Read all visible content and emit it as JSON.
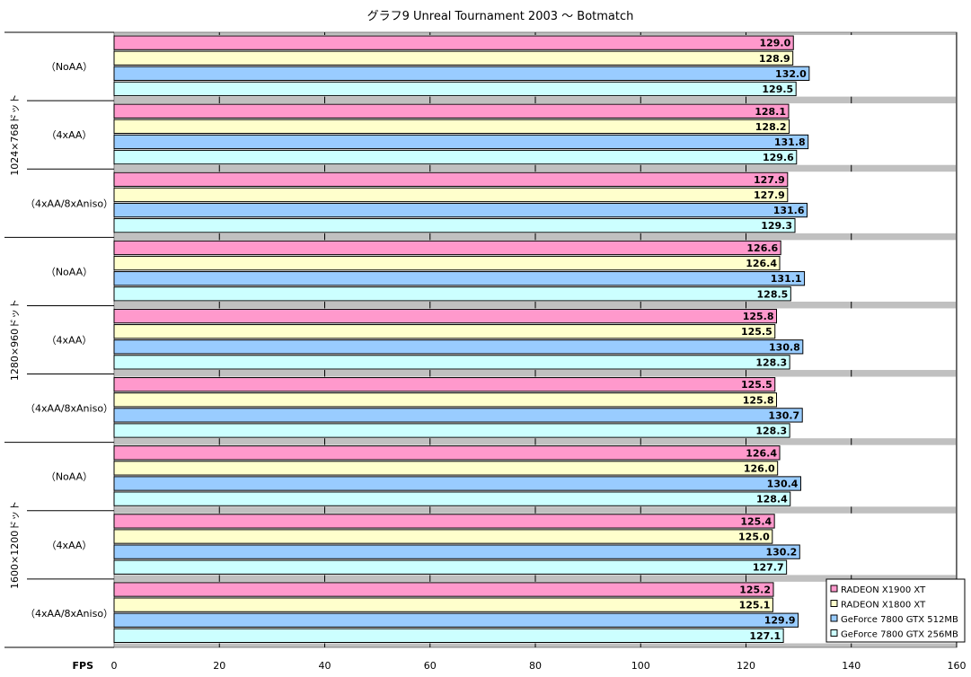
{
  "chart_data": {
    "type": "bar",
    "orientation": "horizontal",
    "title": "グラフ9  Unreal Tournament 2003 〜 Botmatch",
    "xlabel": "FPS",
    "xlim": [
      0,
      160
    ],
    "xticks": [
      0,
      20,
      40,
      60,
      80,
      100,
      120,
      140,
      160
    ],
    "grid": true,
    "legend_position": "bottom-right",
    "groups": [
      {
        "label": "1024×768ドット",
        "categories": [
          "（NoAA）",
          "（4xAA）",
          "（4xAA/8xAniso）"
        ]
      },
      {
        "label": "1280×960ドット",
        "categories": [
          "（NoAA）",
          "（4xAA）",
          "（4xAA/8xAniso）"
        ]
      },
      {
        "label": "1600×1200ドット",
        "categories": [
          "（NoAA）",
          "（4xAA）",
          "（4xAA/8xAniso）"
        ]
      }
    ],
    "series": [
      {
        "name": "RADEON X1900 XT",
        "color": "#ff99cc",
        "values": [
          129.0,
          128.1,
          127.9,
          126.6,
          125.8,
          125.5,
          126.4,
          125.4,
          125.2
        ]
      },
      {
        "name": "RADEON X1800 XT",
        "color": "#ffffcc",
        "values": [
          128.9,
          128.2,
          127.9,
          126.4,
          125.5,
          125.8,
          126.0,
          125.0,
          125.1
        ]
      },
      {
        "name": "GeForce 7800 GTX 512MB",
        "color": "#99ccff",
        "values": [
          132.0,
          131.8,
          131.6,
          131.1,
          130.8,
          130.7,
          130.4,
          130.2,
          129.9
        ]
      },
      {
        "name": "GeForce 7800 GTX 256MB",
        "color": "#ccffff",
        "values": [
          129.5,
          129.6,
          129.3,
          128.5,
          128.3,
          128.3,
          128.4,
          127.7,
          127.1
        ]
      }
    ]
  }
}
